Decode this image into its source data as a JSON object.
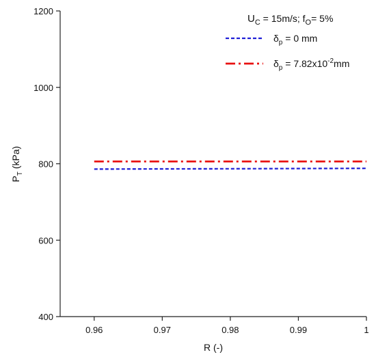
{
  "chart_data": {
    "type": "line",
    "xlabel": "R (-)",
    "ylabel": "P_T (kPa)",
    "ylabel_main": "P",
    "ylabel_sub": "T",
    "ylabel_rest": " (kPa)",
    "xlim": [
      0.955,
      1.0
    ],
    "ylim": [
      400,
      1200
    ],
    "xticks": [
      0.96,
      0.97,
      0.98,
      0.99,
      1.0
    ],
    "xtick_labels": [
      "0.96",
      "0.97",
      "0.98",
      "0.99",
      "1"
    ],
    "yticks": [
      400,
      600,
      800,
      1000,
      1200
    ],
    "ytick_labels": [
      "400",
      "600",
      "800",
      "1000",
      "1200"
    ],
    "annotation": {
      "text": "U_C = 15m/s; f_O= 5%",
      "part1": "U",
      "part1_sub": "C",
      "part2": " = 15m/s; f",
      "part2_sub": "O",
      "part3": "= 5%"
    },
    "legend_position": "top-right",
    "series": [
      {
        "name": "δ_p = 0 mm",
        "legend_main": "δ",
        "legend_sub": "p",
        "legend_rest": " = 0 mm",
        "color": "#1f1fd6",
        "style": "dashed",
        "x": [
          0.96,
          0.97,
          0.98,
          0.99,
          1.0
        ],
        "y": [
          786,
          786.5,
          787,
          787.5,
          788
        ]
      },
      {
        "name": "δ_p = 7.82x10^-2 mm",
        "legend_main": "δ",
        "legend_sub": "p",
        "legend_rest": " =  7.82x10",
        "legend_sup": "-2",
        "legend_tail": "mm",
        "color": "#e81010",
        "style": "dash-dot",
        "x": [
          0.96,
          0.97,
          0.98,
          0.99,
          1.0
        ],
        "y": [
          806,
          806,
          806,
          806,
          806
        ]
      }
    ],
    "grid": false
  }
}
